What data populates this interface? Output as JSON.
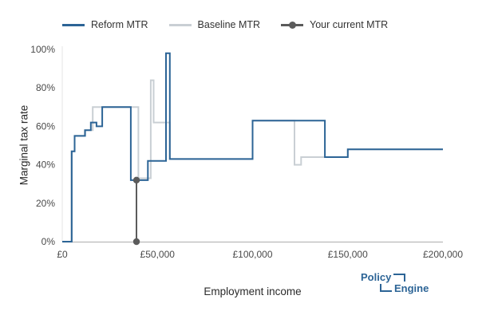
{
  "legend": {
    "items": [
      {
        "label": "Reform MTR",
        "color": "#2C6496",
        "marker": false
      },
      {
        "label": "Baseline MTR",
        "color": "#C9CFD4",
        "marker": false
      },
      {
        "label": "Your current MTR",
        "color": "#5B5B5B",
        "marker": true
      }
    ]
  },
  "axes": {
    "y_title": "Marginal tax rate",
    "x_title": "Employment income",
    "y_ticks": [
      {
        "v": 0,
        "label": "0%"
      },
      {
        "v": 20,
        "label": "20%"
      },
      {
        "v": 40,
        "label": "40%"
      },
      {
        "v": 60,
        "label": "60%"
      },
      {
        "v": 80,
        "label": "80%"
      },
      {
        "v": 100,
        "label": "100%"
      }
    ],
    "x_ticks": [
      {
        "v": 0,
        "label": "£0"
      },
      {
        "v": 50000,
        "label": "£50,000"
      },
      {
        "v": 100000,
        "label": "£100,000"
      },
      {
        "v": 150000,
        "label": "£150,000"
      },
      {
        "v": 200000,
        "label": "£200,000"
      }
    ]
  },
  "branding": {
    "word1": "Policy",
    "word2": "Engine",
    "color": "#2C6496"
  },
  "chart_data": {
    "type": "line",
    "title": "",
    "xlabel": "Employment income",
    "ylabel": "Marginal tax rate",
    "xlim": [
      0,
      200000
    ],
    "ylim": [
      0,
      100
    ],
    "grid": false,
    "legend_position": "top",
    "x_tick_labels": [
      "£0",
      "£50,000",
      "£100,000",
      "£150,000",
      "£200,000"
    ],
    "y_tick_labels": [
      "0%",
      "20%",
      "40%",
      "60%",
      "80%",
      "100%"
    ],
    "series": [
      {
        "name": "Baseline MTR",
        "color": "#C9CFD4",
        "shape": "steps",
        "markers": false,
        "points": [
          [
            0,
            0
          ],
          [
            4800,
            0
          ],
          [
            4800,
            47
          ],
          [
            6500,
            47
          ],
          [
            6500,
            55
          ],
          [
            11800,
            55
          ],
          [
            11800,
            58
          ],
          [
            16000,
            58
          ],
          [
            16000,
            70
          ],
          [
            40000,
            70
          ],
          [
            40000,
            33
          ],
          [
            46500,
            33
          ],
          [
            46500,
            84
          ],
          [
            48000,
            84
          ],
          [
            48000,
            62
          ],
          [
            56500,
            62
          ],
          [
            56500,
            43
          ],
          [
            100000,
            43
          ],
          [
            100000,
            63
          ],
          [
            122000,
            63
          ],
          [
            122000,
            40
          ],
          [
            125500,
            40
          ],
          [
            125500,
            44
          ],
          [
            150000,
            44
          ],
          [
            150000,
            48
          ],
          [
            200000,
            48
          ]
        ]
      },
      {
        "name": "Reform MTR",
        "color": "#2C6496",
        "shape": "steps",
        "markers": false,
        "points": [
          [
            0,
            0
          ],
          [
            5000,
            0
          ],
          [
            5000,
            47
          ],
          [
            6500,
            47
          ],
          [
            6500,
            55
          ],
          [
            12000,
            55
          ],
          [
            12000,
            58
          ],
          [
            15000,
            58
          ],
          [
            15000,
            62
          ],
          [
            18000,
            62
          ],
          [
            18000,
            60
          ],
          [
            21000,
            60
          ],
          [
            21000,
            70
          ],
          [
            36000,
            70
          ],
          [
            36000,
            32
          ],
          [
            45000,
            32
          ],
          [
            45000,
            42
          ],
          [
            54500,
            42
          ],
          [
            54500,
            98
          ],
          [
            56500,
            98
          ],
          [
            56500,
            43
          ],
          [
            100000,
            43
          ],
          [
            100000,
            63
          ],
          [
            138000,
            63
          ],
          [
            138000,
            44
          ],
          [
            150000,
            44
          ],
          [
            150000,
            48
          ],
          [
            200000,
            48
          ]
        ]
      },
      {
        "name": "Your current MTR",
        "color": "#5B5B5B",
        "shape": "vertical-line",
        "markers": true,
        "points": [
          [
            39000,
            0
          ],
          [
            39000,
            32
          ]
        ]
      }
    ]
  }
}
